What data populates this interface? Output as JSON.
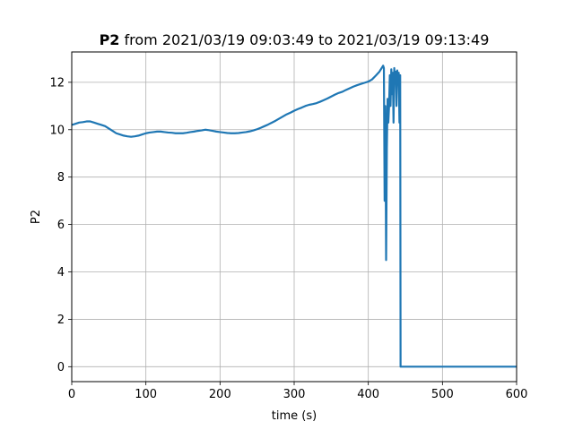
{
  "chart_data": {
    "type": "line",
    "title": {
      "bold": "P2",
      "rest": " from 2021/03/19 09:03:49 to 2021/03/19 09:13:49"
    },
    "xlabel": "time (s)",
    "ylabel": "P2",
    "xlim": [
      0,
      600
    ],
    "ylim": [
      -0.63,
      13.28
    ],
    "x_ticks": [
      0,
      100,
      200,
      300,
      400,
      500,
      600
    ],
    "y_ticks": [
      0,
      2,
      4,
      6,
      8,
      10,
      12
    ],
    "grid": true,
    "series": [
      {
        "color": "#1f77b4",
        "x": [
          0,
          5,
          10,
          15,
          20,
          25,
          30,
          35,
          40,
          45,
          50,
          55,
          60,
          65,
          70,
          75,
          80,
          85,
          90,
          95,
          100,
          105,
          110,
          115,
          120,
          125,
          130,
          135,
          140,
          145,
          150,
          155,
          160,
          165,
          170,
          175,
          180,
          185,
          190,
          195,
          200,
          205,
          210,
          215,
          220,
          225,
          230,
          235,
          240,
          245,
          250,
          255,
          260,
          265,
          270,
          275,
          280,
          285,
          290,
          295,
          300,
          305,
          310,
          315,
          320,
          325,
          330,
          335,
          340,
          345,
          350,
          355,
          360,
          365,
          370,
          375,
          380,
          385,
          390,
          395,
          400,
          405,
          410,
          415,
          418,
          420,
          421,
          422,
          423,
          424,
          425,
          426,
          427,
          428,
          429,
          430,
          431,
          432,
          433,
          434,
          435,
          436,
          437,
          438,
          439,
          440,
          441,
          442,
          443,
          443.5,
          445,
          450,
          500,
          550,
          600
        ],
        "y": [
          10.2,
          10.25,
          10.3,
          10.32,
          10.35,
          10.35,
          10.3,
          10.25,
          10.2,
          10.15,
          10.05,
          9.95,
          9.85,
          9.8,
          9.75,
          9.72,
          9.7,
          9.72,
          9.75,
          9.8,
          9.85,
          9.88,
          9.9,
          9.92,
          9.92,
          9.9,
          9.88,
          9.87,
          9.85,
          9.85,
          9.85,
          9.87,
          9.9,
          9.92,
          9.95,
          9.97,
          10.0,
          9.98,
          9.95,
          9.92,
          9.9,
          9.88,
          9.86,
          9.85,
          9.85,
          9.86,
          9.88,
          9.9,
          9.93,
          9.97,
          10.02,
          10.08,
          10.15,
          10.22,
          10.3,
          10.38,
          10.47,
          10.56,
          10.65,
          10.72,
          10.8,
          10.87,
          10.93,
          11.0,
          11.05,
          11.08,
          11.12,
          11.18,
          11.25,
          11.32,
          11.4,
          11.48,
          11.55,
          11.6,
          11.68,
          11.75,
          11.82,
          11.88,
          11.93,
          11.98,
          12.03,
          12.12,
          12.28,
          12.45,
          12.6,
          12.7,
          12.6,
          7.0,
          11.0,
          4.5,
          9.2,
          11.3,
          10.3,
          11.0,
          12.3,
          11.0,
          12.55,
          11.5,
          12.4,
          10.3,
          12.6,
          12.0,
          12.45,
          11.0,
          12.5,
          12.0,
          12.4,
          10.3,
          12.3,
          0.0,
          0.0,
          0.0,
          0.0,
          0.0,
          0.0
        ]
      }
    ]
  }
}
